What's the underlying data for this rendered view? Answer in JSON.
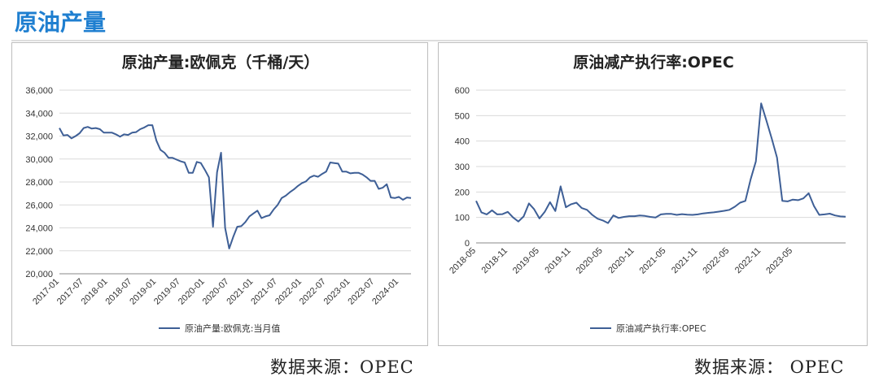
{
  "page": {
    "title": "原油产量"
  },
  "charts": [
    {
      "title": "原油产量:欧佩克（千桶/天）",
      "legend": "原油产量:欧佩克:当月值",
      "source": "数据来源：OPEC",
      "y_ticks": [
        "36,000",
        "34,000",
        "32,000",
        "30,000",
        "28,000",
        "26,000",
        "24,000",
        "22,000",
        "20,000"
      ],
      "x_ticks": [
        "2017-01",
        "2017-07",
        "2018-01",
        "2018-07",
        "2019-01",
        "2019-07",
        "2020-01",
        "2020-07",
        "2021-01",
        "2021-07",
        "2022-01",
        "2022-07",
        "2023-01",
        "2023-07",
        "2024-01"
      ]
    },
    {
      "title": "原油减产执行率:OPEC",
      "legend": "原油减产执行率:OPEC",
      "source": "数据来源：  OPEC",
      "y_ticks": [
        "600",
        "500",
        "400",
        "300",
        "200",
        "100",
        "0"
      ],
      "x_ticks": [
        "2018-05",
        "2018-11",
        "2019-05",
        "2019-11",
        "2020-05",
        "2020-11",
        "2021-05",
        "2021-11",
        "2022-05",
        "2022-11",
        "2023-05"
      ]
    }
  ],
  "chart_data": [
    {
      "type": "line",
      "title": "原油产量:欧佩克（千桶/天）",
      "ylim": [
        20000,
        36000
      ],
      "line_color": "#3e5f96",
      "x_start": "2017-01",
      "series": [
        {
          "name": "原油产量:欧佩克:当月值",
          "values": [
            32700,
            32050,
            32100,
            31800,
            32000,
            32250,
            32700,
            32800,
            32650,
            32700,
            32600,
            32300,
            32300,
            32300,
            32150,
            31950,
            32150,
            32100,
            32300,
            32350,
            32600,
            32750,
            32950,
            32950,
            31600,
            30800,
            30550,
            30100,
            30100,
            29950,
            29800,
            29700,
            28800,
            28800,
            29750,
            29650,
            29050,
            28400,
            24100,
            28850,
            30550,
            24000,
            22200,
            23200,
            24100,
            24150,
            24500,
            25000,
            25250,
            25500,
            24850,
            25000,
            25100,
            25600,
            26000,
            26600,
            26800,
            27100,
            27350,
            27650,
            27900,
            28050,
            28400,
            28550,
            28450,
            28700,
            28900,
            29700,
            29650,
            29600,
            28900,
            28900,
            28750,
            28800,
            28800,
            28650,
            28400,
            28100,
            28100,
            27400,
            27500,
            27800,
            26650,
            26600,
            26700,
            26450,
            26650,
            26600
          ]
        }
      ]
    },
    {
      "type": "line",
      "title": "原油减产执行率:OPEC",
      "ylim": [
        0,
        600
      ],
      "line_color": "#3e5f96",
      "x_start": "2018-05",
      "series": [
        {
          "name": "原油减产执行率:OPEC",
          "values": [
            165,
            120,
            112,
            128,
            112,
            113,
            122,
            100,
            84,
            104,
            155,
            132,
            96,
            122,
            160,
            125,
            222,
            140,
            152,
            158,
            137,
            130,
            110,
            95,
            88,
            78,
            108,
            98,
            102,
            105,
            105,
            108,
            106,
            102,
            100,
            112,
            114,
            114,
            110,
            113,
            111,
            110,
            112,
            116,
            118,
            120,
            123,
            126,
            130,
            142,
            158,
            165,
            250,
            320,
            548,
            480,
            410,
            335,
            165,
            163,
            170,
            168,
            175,
            195,
            145,
            110,
            112,
            115,
            108,
            104,
            103
          ]
        }
      ]
    }
  ]
}
